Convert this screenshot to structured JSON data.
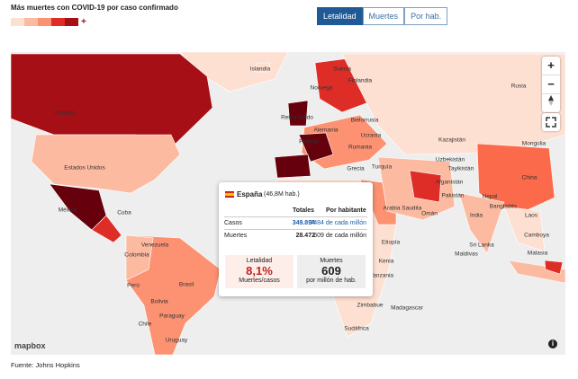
{
  "header": {
    "title": "Más muertes con COVID-19 por caso confirmado",
    "legend_high": "+"
  },
  "tabs": [
    "Letalidad",
    "Muertes",
    "Por hab."
  ],
  "map": {
    "labels": [
      "Islandia",
      "Suecia",
      "Finlandia",
      "Noruega",
      "Rusia",
      "Canadá",
      "Reino Unido",
      "Bielorrusia",
      "Alemania",
      "Ucrania",
      "Francia",
      "Rumania",
      "Kazajistán",
      "Mongolia",
      "Estados Unidos",
      "Turquía",
      "Grecia",
      "Uzbekistán",
      "Tayikistán",
      "China",
      "Afganistán",
      "Pakistán",
      "Nepal",
      "Bangladés",
      "Arabia Saudita",
      "Omán",
      "India",
      "Laos",
      "Cuba",
      "México",
      "Etiopía",
      "Venezuela",
      "Colombia",
      "Sri Lanka",
      "Camboya",
      "Malasia",
      "Maldivas",
      "Kenia",
      "Perú",
      "Brasil",
      "Tanzania",
      "Bolivia",
      "Zimbabue",
      "Madagascar",
      "Paraguay",
      "Chile",
      "Sudáfrica",
      "Uruguay"
    ],
    "controls": [
      "+",
      "−"
    ],
    "logo": "mapbox",
    "info": "i"
  },
  "tooltip": {
    "country": "España",
    "population": "(46,8M hab.)",
    "columns": [
      "Totales",
      "Por habitante"
    ],
    "rows": [
      [
        "Casos",
        "349.894",
        "7484 de cada millón"
      ],
      [
        "Muertes",
        "28.472",
        "609 de cada millón"
      ]
    ],
    "boxes": [
      {
        "title": "Letalidad",
        "value": "8,1%",
        "caption": "Muertes/casos"
      },
      {
        "title": "Muertes",
        "value": "609",
        "caption": "por millón de hab."
      }
    ]
  },
  "footer": {
    "source": "Fuente: Johns Hopkins"
  }
}
